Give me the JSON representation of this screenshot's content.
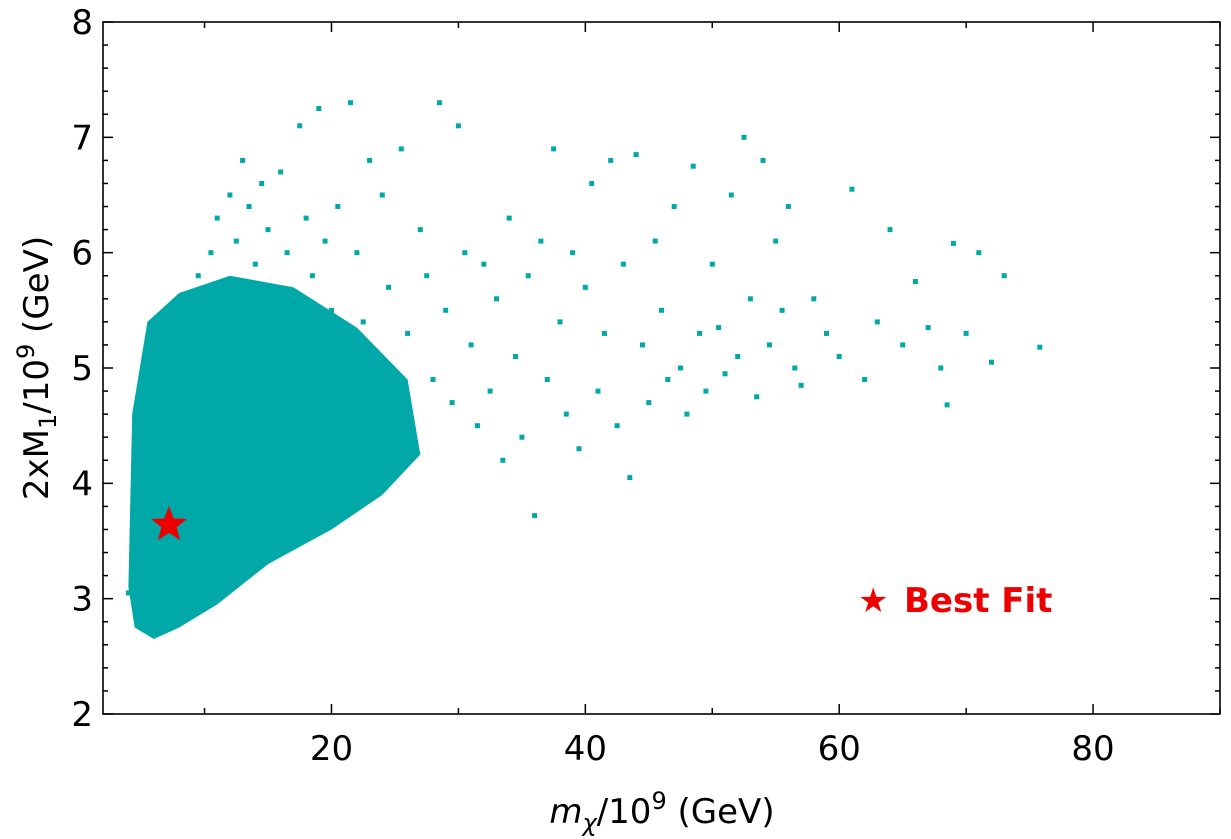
{
  "chart_data": {
    "type": "scatter",
    "title": "",
    "xlabel": {
      "var": "m",
      "sub": "χ",
      "base": "/10",
      "exp": "9",
      "unit": " (GeV)"
    },
    "ylabel": {
      "pre": "2xM",
      "sub": "1",
      "base": "/10",
      "exp": "9",
      "unit": " (GeV)"
    },
    "xlim": [
      2,
      90
    ],
    "ylim": [
      2,
      8
    ],
    "x_ticks": [
      20,
      40,
      60,
      80
    ],
    "y_ticks": [
      2,
      3,
      4,
      5,
      6,
      7,
      8
    ],
    "grid": false,
    "colors": {
      "points": "#00a8a8",
      "best_fit": "#ee0000"
    },
    "legend": {
      "position": "lower-right",
      "entries": [
        {
          "marker": "★",
          "label": "Best Fit",
          "color": "#ee0000"
        }
      ]
    },
    "best_fit": {
      "x": 7.2,
      "y": 3.64
    },
    "series": [
      {
        "points": [
          [
            4.0,
            3.05
          ],
          [
            4.5,
            3.2
          ],
          [
            5.0,
            2.85
          ],
          [
            5.5,
            3.5
          ],
          [
            6.0,
            3.9
          ],
          [
            6.5,
            4.2
          ],
          [
            7.0,
            4.7
          ],
          [
            7.5,
            5.1
          ],
          [
            8.0,
            5.3
          ],
          [
            8.5,
            4.9
          ],
          [
            9.0,
            5.5
          ],
          [
            9.5,
            5.8
          ],
          [
            10.0,
            5.2
          ],
          [
            10.5,
            6.0
          ],
          [
            11.0,
            6.3
          ],
          [
            11.5,
            5.7
          ],
          [
            12.0,
            6.5
          ],
          [
            12.5,
            6.1
          ],
          [
            13.0,
            6.8
          ],
          [
            13.5,
            6.4
          ],
          [
            14.0,
            5.9
          ],
          [
            14.5,
            6.6
          ],
          [
            15.0,
            6.2
          ],
          [
            15.5,
            5.6
          ],
          [
            16.0,
            6.7
          ],
          [
            16.5,
            6.0
          ],
          [
            17.0,
            5.4
          ],
          [
            17.5,
            7.1
          ],
          [
            18.0,
            6.3
          ],
          [
            18.5,
            5.8
          ],
          [
            19.0,
            7.25
          ],
          [
            19.5,
            6.1
          ],
          [
            20.0,
            5.5
          ],
          [
            20.5,
            6.4
          ],
          [
            21.0,
            5.2
          ],
          [
            21.5,
            7.3
          ],
          [
            22.0,
            6.0
          ],
          [
            22.5,
            5.4
          ],
          [
            23.0,
            6.8
          ],
          [
            23.5,
            5.0
          ],
          [
            24.0,
            6.5
          ],
          [
            24.5,
            5.7
          ],
          [
            25.0,
            4.6
          ],
          [
            25.5,
            6.9
          ],
          [
            26.0,
            5.3
          ],
          [
            26.5,
            4.4
          ],
          [
            27.0,
            6.2
          ],
          [
            27.5,
            5.8
          ],
          [
            28.0,
            4.9
          ],
          [
            28.5,
            7.3
          ],
          [
            29.0,
            5.5
          ],
          [
            29.5,
            4.7
          ],
          [
            30.0,
            7.1
          ],
          [
            30.5,
            6.0
          ],
          [
            31.0,
            5.2
          ],
          [
            31.5,
            4.5
          ],
          [
            32.0,
            5.9
          ],
          [
            32.5,
            4.8
          ],
          [
            33.0,
            5.6
          ],
          [
            33.5,
            4.2
          ],
          [
            34.0,
            6.3
          ],
          [
            34.5,
            5.1
          ],
          [
            35.0,
            4.4
          ],
          [
            35.5,
            5.8
          ],
          [
            36.0,
            3.72
          ],
          [
            36.5,
            6.1
          ],
          [
            37.0,
            4.9
          ],
          [
            37.5,
            6.9
          ],
          [
            38.0,
            5.4
          ],
          [
            38.5,
            4.6
          ],
          [
            39.0,
            6.0
          ],
          [
            39.5,
            4.3
          ],
          [
            40.0,
            5.7
          ],
          [
            40.5,
            6.6
          ],
          [
            41.0,
            4.8
          ],
          [
            41.5,
            5.3
          ],
          [
            42.0,
            6.8
          ],
          [
            42.5,
            4.5
          ],
          [
            43.0,
            5.9
          ],
          [
            43.5,
            4.05
          ],
          [
            44.0,
            6.85
          ],
          [
            44.5,
            5.2
          ],
          [
            45.0,
            4.7
          ],
          [
            45.5,
            6.1
          ],
          [
            46.0,
            5.5
          ],
          [
            46.5,
            4.9
          ],
          [
            47.0,
            6.4
          ],
          [
            47.5,
            5.0
          ],
          [
            48.0,
            4.6
          ],
          [
            48.5,
            6.75
          ],
          [
            49.0,
            5.3
          ],
          [
            49.5,
            4.8
          ],
          [
            50.0,
            5.9
          ],
          [
            50.5,
            5.35
          ],
          [
            51.0,
            4.95
          ],
          [
            51.5,
            6.5
          ],
          [
            52.0,
            5.1
          ],
          [
            52.5,
            7.0
          ],
          [
            53.0,
            5.6
          ],
          [
            53.5,
            4.75
          ],
          [
            54.0,
            6.8
          ],
          [
            54.5,
            5.2
          ],
          [
            55.0,
            6.1
          ],
          [
            55.5,
            5.5
          ],
          [
            56.0,
            6.4
          ],
          [
            56.5,
            5.0
          ],
          [
            57.0,
            4.85
          ],
          [
            58.0,
            5.6
          ],
          [
            59.0,
            5.3
          ],
          [
            60.0,
            5.1
          ],
          [
            61.0,
            6.55
          ],
          [
            62.0,
            4.9
          ],
          [
            63.0,
            5.4
          ],
          [
            64.0,
            6.2
          ],
          [
            65.0,
            5.2
          ],
          [
            66.0,
            5.75
          ],
          [
            67.0,
            5.35
          ],
          [
            68.0,
            5.0
          ],
          [
            68.5,
            4.68
          ],
          [
            69.0,
            6.08
          ],
          [
            70.0,
            5.3
          ],
          [
            71.0,
            6.0
          ],
          [
            72.0,
            5.05
          ],
          [
            73.0,
            5.8
          ],
          [
            75.8,
            5.18
          ]
        ]
      }
    ]
  }
}
